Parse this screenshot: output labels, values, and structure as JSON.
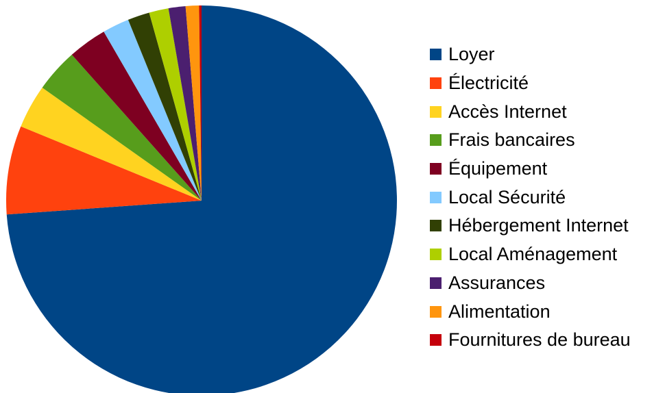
{
  "chart_data": {
    "type": "pie",
    "title": "",
    "start_angle": "top",
    "direction": "clockwise",
    "legend_position": "right",
    "categories": [
      "Loyer",
      "Électricité",
      "Accès Internet",
      "Frais bancaires",
      "Équipement",
      "Local Sécurité",
      "Hébergement Internet",
      "Local Aménagement",
      "Assurances",
      "Alimentation",
      "Fournitures de bureau"
    ],
    "values": [
      73.5,
      7.3,
      3.6,
      3.6,
      3.2,
      2.2,
      1.8,
      1.6,
      1.4,
      1.1,
      0.2
    ],
    "unit": "%",
    "colors": [
      "#004586",
      "#ff420e",
      "#ffd320",
      "#579d1c",
      "#7e0021",
      "#83caff",
      "#314004",
      "#aecf00",
      "#4b1f6f",
      "#ff950e",
      "#c5000b"
    ]
  }
}
